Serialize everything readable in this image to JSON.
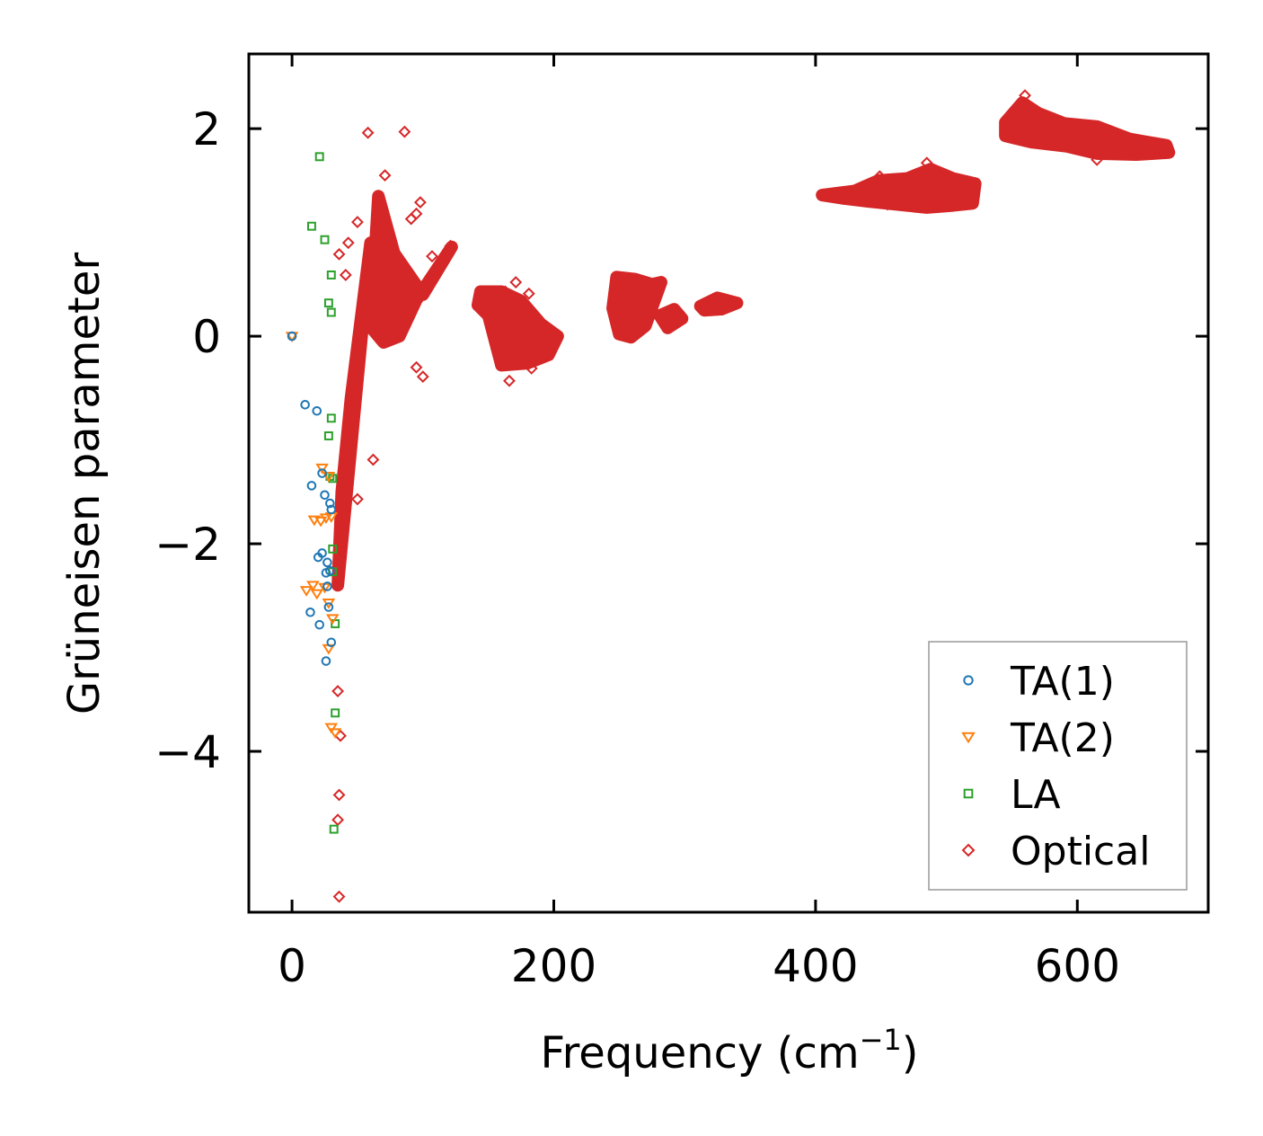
{
  "chart_data": {
    "type": "scatter",
    "title": "",
    "xlabel": "Frequency (cm",
    "xlabel_sup": "−1",
    "xlabel_close": ")",
    "ylabel": "Grüneisen parameter",
    "xlim": [
      -33,
      700
    ],
    "ylim": [
      -5.55,
      2.72
    ],
    "xticks": [
      0,
      200,
      400,
      600
    ],
    "xtick_labels": [
      "0",
      "200",
      "400",
      "600"
    ],
    "yticks": [
      2,
      0,
      -2,
      -4
    ],
    "ytick_labels": [
      "2",
      "0",
      "−2",
      "−4"
    ],
    "legend_position": "lower-right",
    "series": [
      {
        "name": "TA(1)",
        "marker": "circle",
        "color": "#1f77b4",
        "points": [
          [
            0,
            0
          ],
          [
            10,
            -0.66
          ],
          [
            19,
            -0.72
          ],
          [
            15,
            -1.44
          ],
          [
            23,
            -1.32
          ],
          [
            25,
            -1.53
          ],
          [
            29,
            -1.61
          ],
          [
            30,
            -1.67
          ],
          [
            20,
            -2.13
          ],
          [
            23,
            -2.09
          ],
          [
            27,
            -2.18
          ],
          [
            26,
            -2.28
          ],
          [
            29,
            -2.26
          ],
          [
            27,
            -2.41
          ],
          [
            28,
            -2.61
          ],
          [
            14,
            -2.66
          ],
          [
            21,
            -2.78
          ],
          [
            30,
            -2.95
          ],
          [
            26,
            -3.13
          ]
        ]
      },
      {
        "name": "TA(2)",
        "marker": "triangle-down",
        "color": "#ff7f0e",
        "points": [
          [
            0,
            0
          ],
          [
            23,
            -1.27
          ],
          [
            28,
            -1.35
          ],
          [
            17,
            -1.77
          ],
          [
            22,
            -1.78
          ],
          [
            26,
            -1.75
          ],
          [
            30,
            -1.74
          ],
          [
            11,
            -2.45
          ],
          [
            16,
            -2.4
          ],
          [
            19,
            -2.48
          ],
          [
            25,
            -2.42
          ],
          [
            28,
            -2.57
          ],
          [
            31,
            -2.72
          ],
          [
            28,
            -3.01
          ],
          [
            30,
            -3.77
          ],
          [
            33,
            -3.82
          ]
        ]
      },
      {
        "name": "LA",
        "marker": "square",
        "color": "#2ca02c",
        "points": [
          [
            21,
            1.73
          ],
          [
            15,
            1.06
          ],
          [
            25,
            0.93
          ],
          [
            30,
            0.59
          ],
          [
            28,
            0.32
          ],
          [
            30,
            0.23
          ],
          [
            30,
            -0.79
          ],
          [
            28,
            -0.96
          ],
          [
            29,
            -1.35
          ],
          [
            31,
            -1.37
          ],
          [
            31,
            -2.05
          ],
          [
            31,
            -2.27
          ],
          [
            33,
            -2.77
          ],
          [
            33,
            -3.63
          ],
          [
            32,
            -4.75
          ]
        ]
      },
      {
        "name": "Optical",
        "marker": "diamond",
        "color": "#d62728",
        "points": [
          [
            58,
            1.96
          ],
          [
            86,
            1.97
          ],
          [
            71,
            1.55
          ],
          [
            98,
            1.29
          ],
          [
            95,
            1.18
          ],
          [
            91,
            1.13
          ],
          [
            50,
            1.1
          ],
          [
            43,
            0.9
          ],
          [
            36,
            0.79
          ],
          [
            41,
            0.59
          ],
          [
            107,
            0.77
          ],
          [
            121,
            0.87
          ],
          [
            95,
            -0.3
          ],
          [
            100,
            -0.39
          ],
          [
            62,
            -1.19
          ],
          [
            50,
            -1.57
          ],
          [
            37,
            -3.85
          ],
          [
            36,
            -4.42
          ],
          [
            35,
            -4.66
          ],
          [
            36,
            -5.4
          ],
          [
            36,
            -2.05
          ],
          [
            35,
            -3.42
          ],
          [
            166,
            -0.43
          ],
          [
            163,
            0.43
          ],
          [
            171,
            0.52
          ],
          [
            181,
            0.41
          ],
          [
            183,
            -0.31
          ],
          [
            449,
            1.54
          ],
          [
            485,
            1.67
          ],
          [
            560,
            2.32
          ],
          [
            615,
            1.7
          ],
          [
            490,
            1.29
          ],
          [
            517,
            1.31
          ],
          [
            455,
            1.27
          ]
        ],
        "clusters": [
          [
            [
              60,
              0.9
            ],
            [
              45,
              -0.6
            ],
            [
              38,
              -1.5
            ],
            [
              35,
              -2.4
            ]
          ],
          [
            [
              60,
              0.1
            ],
            [
              66,
              1.35
            ],
            [
              78,
              0.8
            ],
            [
              100,
              0.4
            ],
            [
              122,
              0.86
            ],
            [
              95,
              0.35
            ],
            [
              82,
              0.0
            ],
            [
              70,
              -0.06
            ],
            [
              62,
              0.06
            ]
          ],
          [
            [
              144,
              0.43
            ],
            [
              160,
              0.43
            ],
            [
              175,
              0.34
            ],
            [
              190,
              0.12
            ],
            [
              203,
              0.0
            ],
            [
              196,
              -0.18
            ],
            [
              180,
              -0.26
            ],
            [
              160,
              -0.28
            ],
            [
              150,
              0.2
            ],
            [
              142,
              0.3
            ]
          ],
          [
            [
              248,
              0.57
            ],
            [
              262,
              0.55
            ],
            [
              275,
              0.5
            ],
            [
              282,
              0.52
            ],
            [
              270,
              0.1
            ],
            [
              259,
              -0.01
            ],
            [
              250,
              0.02
            ],
            [
              245,
              0.27
            ]
          ],
          [
            [
              281,
              0.2
            ],
            [
              292,
              0.26
            ],
            [
              298,
              0.17
            ],
            [
              287,
              0.08
            ]
          ],
          [
            [
              312,
              0.29
            ],
            [
              325,
              0.37
            ],
            [
              340,
              0.32
            ],
            [
              328,
              0.26
            ],
            [
              315,
              0.25
            ]
          ],
          [
            [
              405,
              1.36
            ],
            [
              430,
              1.4
            ],
            [
              448,
              1.5
            ],
            [
              470,
              1.52
            ],
            [
              488,
              1.61
            ],
            [
              505,
              1.52
            ],
            [
              522,
              1.47
            ],
            [
              520,
              1.28
            ],
            [
              505,
              1.26
            ],
            [
              485,
              1.24
            ],
            [
              462,
              1.27
            ],
            [
              440,
              1.3
            ],
            [
              420,
              1.33
            ]
          ],
          [
            [
              545,
              2.06
            ],
            [
              558,
              2.25
            ],
            [
              570,
              2.15
            ],
            [
              590,
              2.05
            ],
            [
              615,
              2.02
            ],
            [
              640,
              1.9
            ],
            [
              668,
              1.84
            ],
            [
              670,
              1.77
            ],
            [
              645,
              1.75
            ],
            [
              615,
              1.76
            ],
            [
              592,
              1.83
            ],
            [
              565,
              1.87
            ],
            [
              545,
              1.93
            ]
          ]
        ]
      }
    ]
  }
}
